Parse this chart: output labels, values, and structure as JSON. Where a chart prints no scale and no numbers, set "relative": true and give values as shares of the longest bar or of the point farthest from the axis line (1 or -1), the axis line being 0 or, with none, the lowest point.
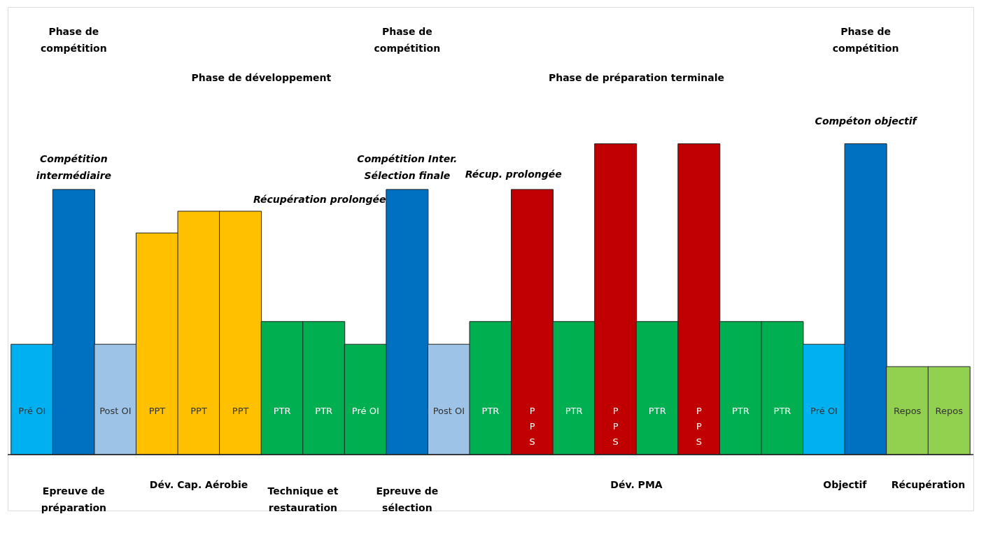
{
  "chart_data": {
    "type": "bar",
    "relative": true,
    "categories": [
      "Pré OI",
      null,
      "Post OI",
      "PPT",
      "PPT",
      "PPT",
      "PTR",
      "PTR",
      "Pré OI",
      null,
      "Post OI",
      "PTR",
      "P\nP\nS",
      "PTR",
      "P\nP\nS",
      "PTR",
      "P\nP\nS",
      "PTR",
      "PTR",
      "Pré OI",
      null,
      "Repos",
      "Repos"
    ],
    "values": [
      0.355,
      0.853,
      0.355,
      0.713,
      0.783,
      0.783,
      0.428,
      0.428,
      0.355,
      0.853,
      0.355,
      0.428,
      0.853,
      0.428,
      1,
      0.428,
      1,
      0.428,
      0.428,
      0.355,
      1,
      0.283,
      0.283
    ],
    "colors": [
      "#00b0f0",
      "#0070c0",
      "#9dc3e6",
      "#ffc000",
      "#ffc000",
      "#ffc000",
      "#00b050",
      "#00b050",
      "#00b050",
      "#0070c0",
      "#9dc3e6",
      "#00b050",
      "#c00000",
      "#00b050",
      "#c00000",
      "#00b050",
      "#c00000",
      "#00b050",
      "#00b050",
      "#00b0f0",
      "#0070c0",
      "#92d050",
      "#92d050"
    ],
    "annotations": [
      "Epreuve de\npréparation",
      "Dév. Cap. Aérobie",
      "Technique et\nrestauration",
      "Epreuve de\nsélection",
      "Dév. PMA",
      "Objectif",
      "Récupération",
      "Compétition\nintermédiaire",
      "Récupération prolongée",
      "Compétition Inter.\nSélection finale",
      "Récup. prolongée",
      "Compéton objectif",
      "Phase de\ncompétition",
      "Phase de développement",
      "Phase de\ncompétition",
      "Phase de préparation terminale",
      "Phase de\ncompétition"
    ]
  }
}
